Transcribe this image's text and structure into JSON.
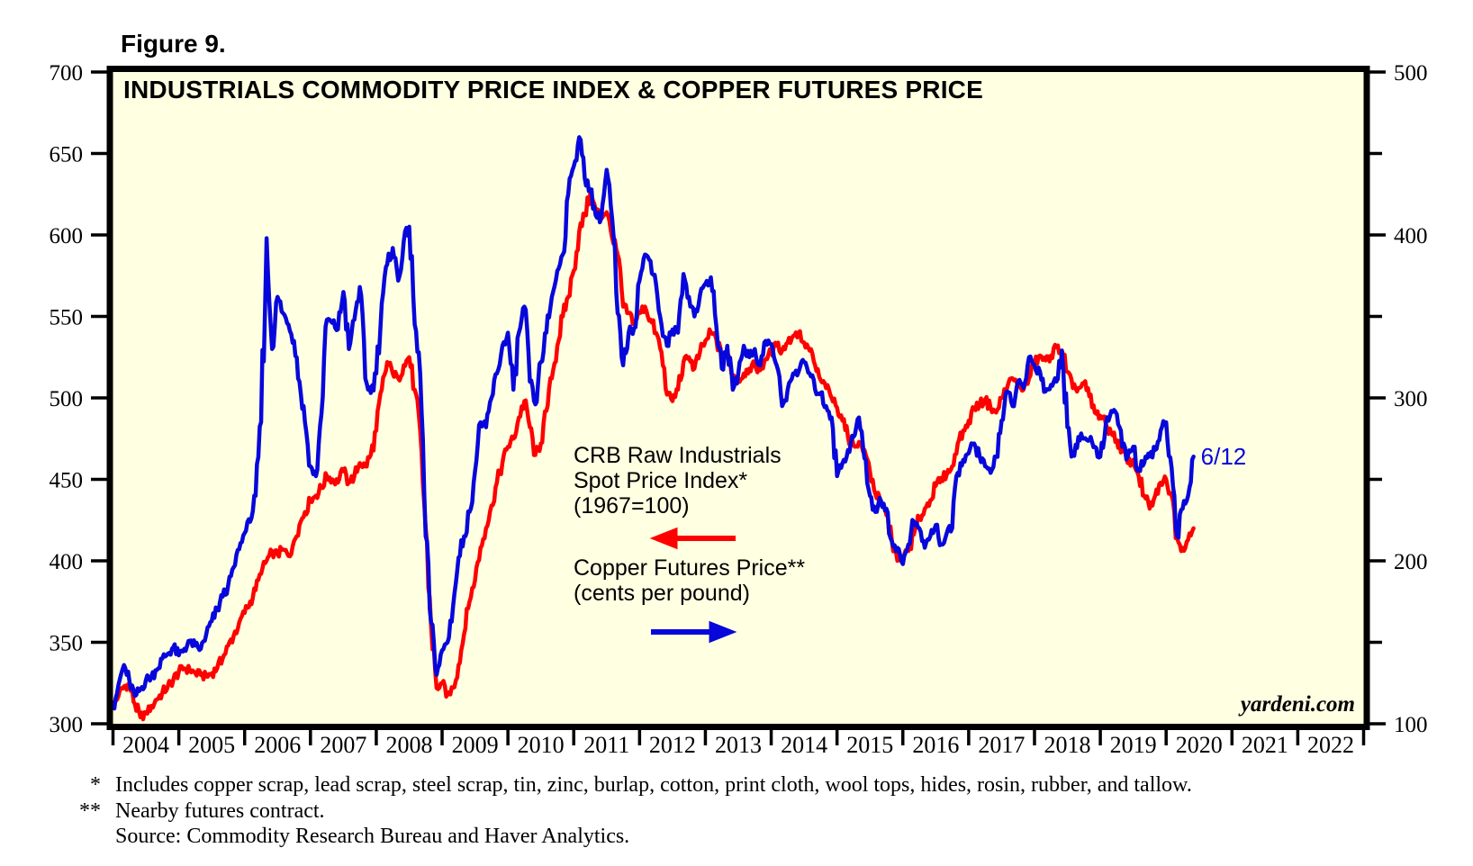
{
  "figure_label": "Figure 9.",
  "title": "INDUSTRIALS COMMODITY PRICE INDEX & COPPER FUTURES PRICE",
  "watermark": "yardeni.com",
  "annotations": {
    "crb_label_line1": "CRB Raw Industrials",
    "crb_label_line2": "Spot Price Index*",
    "crb_label_line3": "(1967=100)",
    "copper_label_line1": "Copper Futures Price**",
    "copper_label_line2": "(cents per pound)",
    "last_point_label": "6/12"
  },
  "footnotes": [
    {
      "mark": "*",
      "text": "Includes copper scrap, lead scrap, steel scrap, tin, zinc, burlap, cotton, print cloth, wool tops, hides, rosin, rubber, and tallow."
    },
    {
      "mark": "**",
      "text": "Nearby futures contract."
    },
    {
      "mark": "",
      "text": "Source: Commodity Research Bureau and Haver Analytics."
    }
  ],
  "colors": {
    "crb_red": "#FF0000",
    "copper_blue": "#0707DC",
    "plot_background": "#FFFFE2",
    "axis_black": "#000000"
  },
  "chart_data": {
    "type": "line",
    "title": "INDUSTRIALS COMMODITY PRICE INDEX & COPPER FUTURES PRICE",
    "grid": false,
    "x_axis": {
      "year_labels": [
        "2004",
        "2005",
        "2006",
        "2007",
        "2008",
        "2009",
        "2010",
        "2011",
        "2012",
        "2013",
        "2014",
        "2015",
        "2016",
        "2017",
        "2018",
        "2019",
        "2020",
        "2021",
        "2022"
      ]
    },
    "left_axis": {
      "series": "CRB Raw Industrials Spot Price Index* (1967=100)",
      "min": 300,
      "max": 700,
      "tick_labels": [
        "700",
        "650",
        "600",
        "550",
        "500",
        "450",
        "400",
        "350",
        "300"
      ]
    },
    "right_axis": {
      "series": "Copper Futures Price** (cents per pound)",
      "min": 100,
      "max": 500,
      "tick_labels": [
        "500",
        "400",
        "300",
        "200",
        "100"
      ],
      "minor_ticks": [
        450,
        350,
        250,
        150
      ]
    },
    "series": [
      {
        "name": "CRB Raw Industrials Spot Price Index (1967=100)",
        "axis": "left",
        "color_key": "crb_red",
        "start_year": 2004,
        "points_per_year": 12,
        "last_point": "June 2020",
        "values": [
          310,
          317,
          323,
          324,
          312,
          304,
          307,
          311,
          315,
          319,
          323,
          327,
          332,
          334,
          333,
          331,
          330,
          329,
          331,
          334,
          340,
          348,
          354,
          362,
          368,
          375,
          382,
          392,
          400,
          405,
          404,
          407,
          403,
          412,
          422,
          430,
          437,
          440,
          445,
          452,
          450,
          448,
          455,
          448,
          452,
          460,
          458,
          465,
          480,
          505,
          522,
          515,
          512,
          520,
          525,
          505,
          480,
          420,
          360,
          322,
          325,
          318,
          322,
          336,
          355,
          375,
          388,
          408,
          420,
          434,
          448,
          460,
          470,
          475,
          488,
          498,
          482,
          465,
          472,
          492,
          512,
          532,
          550,
          562,
          578,
          602,
          612,
          625,
          615,
          612,
          614,
          598,
          588,
          556,
          552,
          547,
          552,
          556,
          548,
          540,
          528,
          502,
          498,
          505,
          522,
          525,
          518,
          528,
          535,
          540,
          536,
          524,
          528,
          514,
          510,
          515,
          518,
          520,
          517,
          524,
          528,
          532,
          529,
          534,
          538,
          540,
          534,
          529,
          520,
          511,
          506,
          500,
          494,
          486,
          476,
          471,
          473,
          468,
          455,
          441,
          436,
          428,
          412,
          400,
          402,
          406,
          416,
          426,
          432,
          437,
          446,
          451,
          453,
          458,
          472,
          480,
          486,
          494,
          496,
          499,
          494,
          491,
          500,
          506,
          512,
          507,
          505,
          512,
          521,
          526,
          523,
          526,
          531,
          529,
          516,
          506,
          506,
          509,
          501,
          491,
          489,
          484,
          478,
          474,
          468,
          460,
          462,
          452,
          440,
          432,
          440,
          448,
          450,
          440,
          414,
          408,
          413,
          420
        ]
      },
      {
        "name": "Copper Futures Price (cents per pound)",
        "axis": "right",
        "color_key": "copper_blue",
        "start_year": 2004,
        "points_per_year": 12,
        "last_point": "6/12/2020",
        "values": [
          110,
          124,
          136,
          126,
          117,
          121,
          127,
          129,
          133,
          140,
          143,
          147,
          142,
          146,
          151,
          148,
          146,
          155,
          163,
          170,
          178,
          185,
          196,
          207,
          217,
          224,
          240,
          285,
          398,
          330,
          362,
          352,
          345,
          335,
          310,
          285,
          258,
          252,
          290,
          348,
          346,
          342,
          365,
          330,
          348,
          368,
          312,
          303,
          315,
          358,
          382,
          392,
          372,
          396,
          405,
          345,
          315,
          215,
          162,
          130,
          145,
          150,
          172,
          202,
          215,
          230,
          255,
          285,
          282,
          300,
          315,
          332,
          340,
          305,
          340,
          356,
          310,
          296,
          322,
          340,
          362,
          378,
          388,
          425,
          442,
          460,
          435,
          428,
          412,
          410,
          440,
          410,
          352,
          320,
          340,
          343,
          372,
          388,
          384,
          370,
          345,
          332,
          342,
          340,
          376,
          362,
          350,
          363,
          370,
          374,
          344,
          318,
          332,
          305,
          315,
          332,
          325,
          330,
          320,
          335,
          333,
          320,
          295,
          305,
          315,
          316,
          322,
          315,
          305,
          303,
          295,
          288,
          252,
          260,
          268,
          276,
          288,
          263,
          240,
          230,
          237,
          232,
          212,
          208,
          198,
          210,
          224,
          220,
          208,
          215,
          222,
          210,
          217,
          220,
          254,
          262,
          266,
          272,
          264,
          258,
          254,
          264,
          286,
          304,
          295,
          310,
          306,
          325,
          320,
          316,
          304,
          308,
          310,
          329,
          282,
          265,
          276,
          275,
          274,
          270,
          264,
          284,
          292,
          290,
          270,
          264,
          270,
          256,
          260,
          264,
          268,
          280,
          285,
          257,
          215,
          232,
          240,
          264
        ]
      }
    ]
  }
}
